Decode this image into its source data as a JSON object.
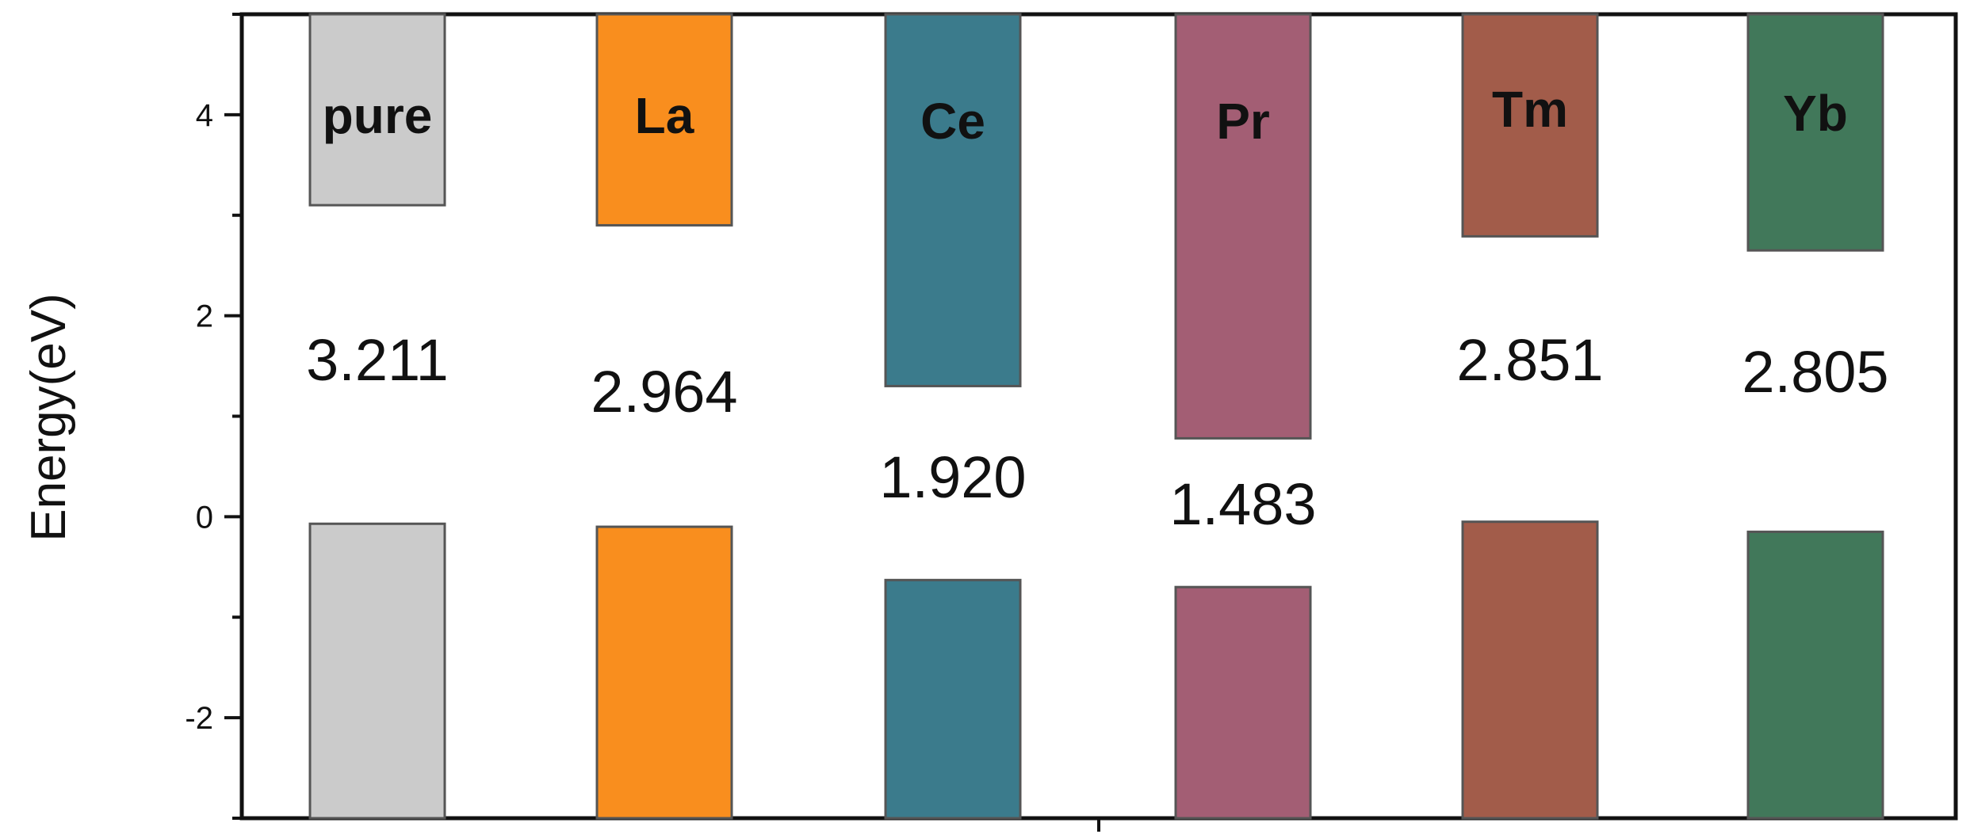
{
  "chart_data": {
    "type": "bar",
    "ylabel": "Energy(eV)",
    "ylim": [
      -3,
      5
    ],
    "yticks": [
      -2,
      0,
      2,
      4
    ],
    "grid": false,
    "categories": [
      "pure",
      "La",
      "Ce",
      "Pr",
      "Tm",
      "Yb"
    ],
    "conduction_band_min": [
      3.1,
      2.9,
      1.3,
      0.78,
      2.79,
      2.65
    ],
    "valence_band_max": [
      -0.07,
      -0.1,
      -0.63,
      -0.7,
      -0.05,
      -0.15
    ],
    "band_gap_labels": [
      "3.211",
      "2.964",
      "1.920",
      "1.483",
      "2.851",
      "2.805"
    ],
    "colors": [
      "#cbcbcb",
      "#f98e1e",
      "#3b7b8c",
      "#a35e74",
      "#a25c4a",
      "#41785a"
    ]
  }
}
